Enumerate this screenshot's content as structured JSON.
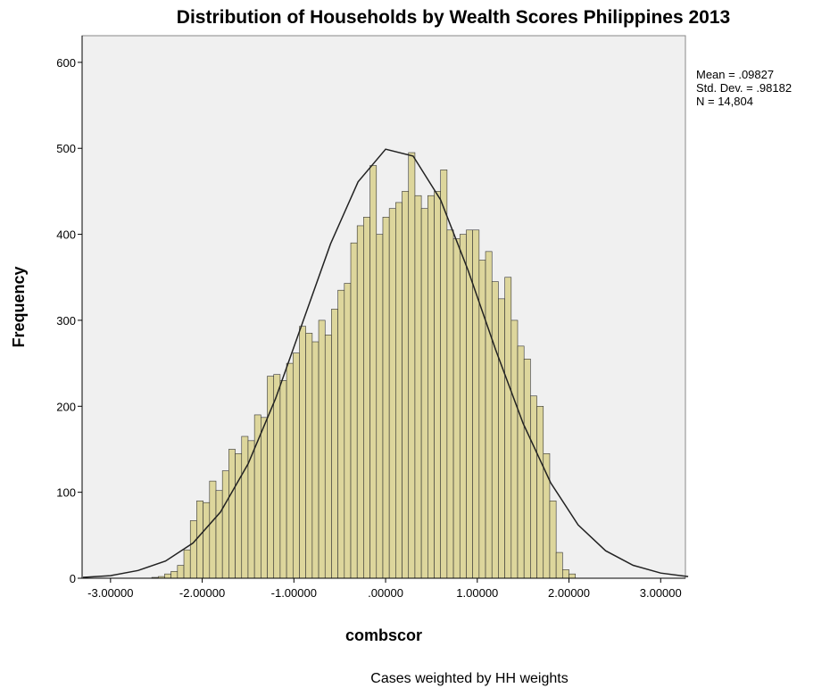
{
  "chart_data": {
    "type": "histogram",
    "title": "Distribution of Households by Wealth Scores Philippines 2013",
    "x_label": "combscor",
    "y_label": "Frequency",
    "footnote": "Cases weighted by HH weights",
    "annotations": [
      "Mean = .09827",
      "Std. Dev. = .98182",
      "N = 14,804"
    ],
    "bins": [
      -2.55,
      -2.48,
      -2.41,
      -2.34,
      -2.27,
      -2.2,
      -2.13,
      -2.06,
      -1.99,
      -1.92,
      -1.85,
      -1.78,
      -1.71,
      -1.64,
      -1.57,
      -1.5,
      -1.43,
      -1.36,
      -1.29,
      -1.22,
      -1.15,
      -1.08,
      -1.01,
      -0.94,
      -0.87,
      -0.8,
      -0.73,
      -0.66,
      -0.59,
      -0.52,
      -0.45,
      -0.38,
      -0.31,
      -0.24,
      -0.17,
      -0.1,
      -0.03,
      0.04,
      0.11,
      0.18,
      0.25,
      0.32,
      0.39,
      0.46,
      0.53,
      0.6,
      0.67,
      0.74,
      0.81,
      0.88,
      0.95,
      1.02,
      1.09,
      1.16,
      1.23,
      1.3,
      1.37,
      1.44,
      1.51,
      1.58,
      1.65,
      1.72,
      1.79,
      1.86,
      1.93,
      2.0,
      2.07
    ],
    "values": [
      1,
      2,
      5,
      8,
      15,
      33,
      67,
      90,
      88,
      113,
      102,
      125,
      150,
      145,
      165,
      160,
      190,
      187,
      235,
      237,
      230,
      250,
      262,
      293,
      285,
      275,
      300,
      283,
      313,
      335,
      343,
      390,
      410,
      420,
      480,
      400,
      420,
      430,
      437,
      450,
      495,
      445,
      430,
      445,
      450,
      475,
      405,
      395,
      400,
      405,
      405,
      370,
      380,
      345,
      325,
      350,
      300,
      270,
      255,
      212,
      200,
      145,
      90,
      30,
      10,
      5
    ],
    "color": "#ddd69c",
    "curve": {
      "x": [
        -3.3,
        -3.0,
        -2.7,
        -2.4,
        -2.1,
        -1.8,
        -1.5,
        -1.2,
        -0.9,
        -0.6,
        -0.3,
        0,
        0.3,
        0.6,
        0.9,
        1.2,
        1.5,
        1.8,
        2.1,
        2.4,
        2.7,
        3.0,
        3.3
      ],
      "values": [
        1,
        3,
        9,
        20,
        41,
        77,
        133,
        209,
        299,
        389,
        461,
        499,
        491,
        440,
        358,
        266,
        180,
        111,
        62,
        32,
        15,
        6,
        2
      ]
    },
    "xlim": [
      -3.31,
      3.27
    ],
    "ylim": [
      0,
      631
    ],
    "xticks": [
      {
        "value": -3,
        "label": "-3.00000"
      },
      {
        "value": -2,
        "label": "-2.00000"
      },
      {
        "value": -1,
        "label": "-1.00000"
      },
      {
        "value": 0,
        "label": ".00000"
      },
      {
        "value": 1,
        "label": "1.00000"
      },
      {
        "value": 2,
        "label": "2.00000"
      },
      {
        "value": 3,
        "label": "3.00000"
      }
    ],
    "yticks": [
      0,
      100,
      200,
      300,
      400,
      500,
      600
    ]
  }
}
